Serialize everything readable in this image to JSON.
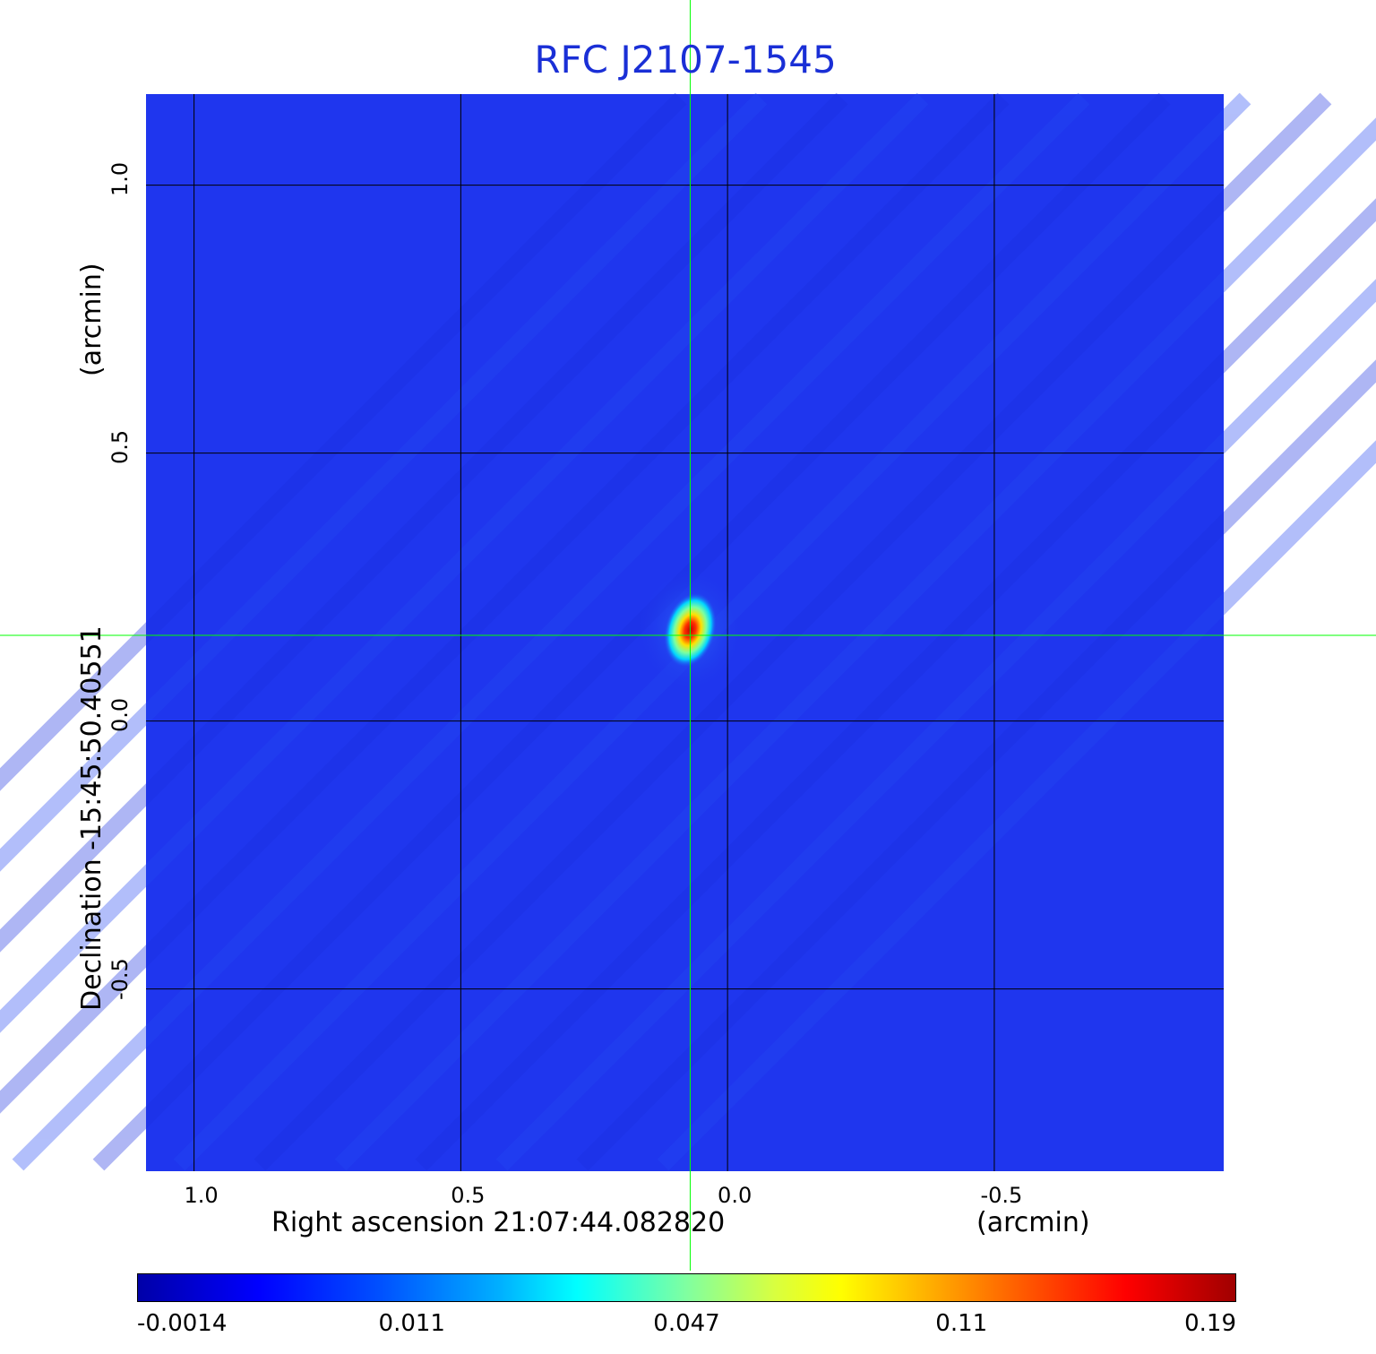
{
  "chart_data": {
    "type": "heatmap",
    "title": "RFC J2107-1545",
    "xlabel": "Right ascension  21:07:44.082820",
    "xunit": "(arcmin)",
    "ylabel": "Declination  -15:45:50.40551",
    "yunit": "(arcmin)",
    "x_ticks": [
      {
        "value": 1.0,
        "label": "1.0"
      },
      {
        "value": 0.5,
        "label": "0.5"
      },
      {
        "value": 0.0,
        "label": "0.0"
      },
      {
        "value": -0.5,
        "label": "-0.5"
      }
    ],
    "y_ticks": [
      {
        "value": 1.0,
        "label": "1.0"
      },
      {
        "value": 0.5,
        "label": "0.5"
      },
      {
        "value": 0.0,
        "label": "0.0"
      },
      {
        "value": -0.5,
        "label": "-0.5"
      }
    ],
    "xlim": [
      1.09,
      -0.93
    ],
    "ylim": [
      -0.84,
      1.17
    ],
    "grid": true,
    "crosshair": {
      "x": 0.07,
      "y": 0.16,
      "color": "#00ff00"
    },
    "source": {
      "x": 0.07,
      "y": 0.17,
      "peak": 0.19
    },
    "background_color": "#1f36ee",
    "colorbar": {
      "ticks": [
        "-0.0014",
        "0.011",
        "0.047",
        "0.11",
        "0.19"
      ],
      "colormap": "jet"
    },
    "colors": {
      "title": "#1a2fd6",
      "crosshair": "#00ff00"
    }
  }
}
